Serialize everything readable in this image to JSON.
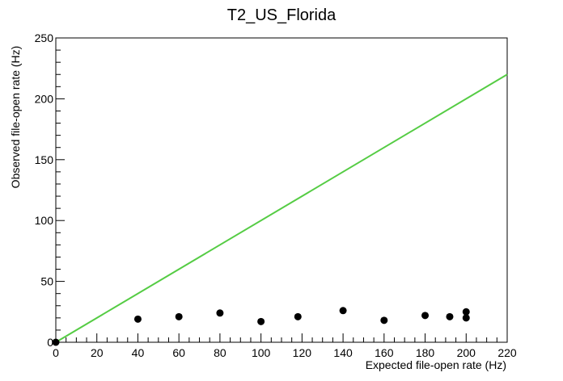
{
  "chart_data": {
    "type": "scatter",
    "title": "T2_US_Florida",
    "xlabel": "Expected file-open rate (Hz)",
    "ylabel": "Observed file-open rate (Hz)",
    "xlim": [
      0,
      220
    ],
    "ylim": [
      0,
      250
    ],
    "x_ticks": [
      0,
      20,
      40,
      60,
      80,
      100,
      120,
      140,
      160,
      180,
      200,
      220
    ],
    "y_ticks": [
      0,
      50,
      100,
      150,
      200,
      250
    ],
    "grid": false,
    "series": [
      {
        "type": "scatter",
        "color": "#000000",
        "points": [
          {
            "x": 0,
            "y": 0
          },
          {
            "x": 40,
            "y": 19
          },
          {
            "x": 60,
            "y": 21
          },
          {
            "x": 80,
            "y": 24
          },
          {
            "x": 100,
            "y": 17
          },
          {
            "x": 118,
            "y": 21
          },
          {
            "x": 140,
            "y": 26
          },
          {
            "x": 160,
            "y": 18
          },
          {
            "x": 180,
            "y": 22
          },
          {
            "x": 192,
            "y": 21
          },
          {
            "x": 200,
            "y": 25
          },
          {
            "x": 200,
            "y": 20
          }
        ]
      },
      {
        "type": "line",
        "color": "#55cc44",
        "points": [
          {
            "x": 0,
            "y": 0
          },
          {
            "x": 220,
            "y": 220
          }
        ]
      }
    ]
  }
}
